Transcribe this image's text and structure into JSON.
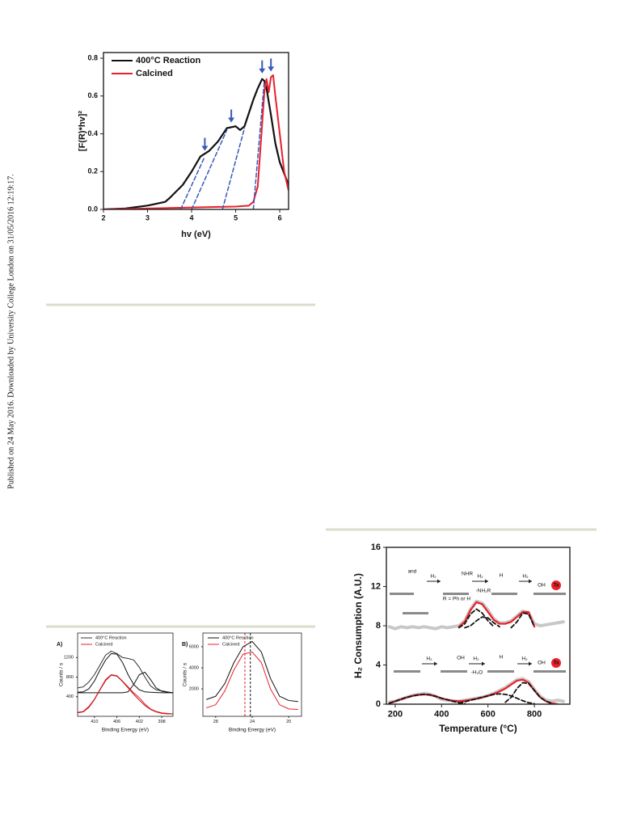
{
  "sidebar": "Published on 24 May 2016. Downloaded by University College London on 31/05/2016 12:19:17.",
  "chart_data": [
    {
      "type": "line",
      "xlabel": "hv (eV)",
      "ylabel": "[F(R)*hv]²",
      "xlim": [
        2,
        6.2
      ],
      "ylim": [
        0,
        0.83
      ],
      "xticks": [
        2,
        3,
        4,
        5,
        6
      ],
      "yticks": [
        {
          "value": 0,
          "label": "0.0"
        },
        0.2,
        0.4,
        0.6,
        0.8
      ],
      "legend": "upper left",
      "series": [
        {
          "name": "400°C Reaction",
          "color": "#111111",
          "linewidth": 2.2,
          "x": [
            2,
            2.5,
            3,
            3.4,
            3.5,
            3.8,
            4.0,
            4.2,
            4.4,
            4.6,
            4.8,
            5.0,
            5.1,
            5.2,
            5.4,
            5.5,
            5.6,
            5.65,
            5.7,
            5.8,
            5.9,
            6.0,
            6.1,
            6.2
          ],
          "values": [
            0,
            0.005,
            0.02,
            0.04,
            0.06,
            0.13,
            0.2,
            0.28,
            0.31,
            0.36,
            0.43,
            0.44,
            0.42,
            0.44,
            0.58,
            0.64,
            0.69,
            0.68,
            0.64,
            0.5,
            0.35,
            0.25,
            0.19,
            0.13
          ]
        },
        {
          "name": "Calcined",
          "color": "#e8202a",
          "linewidth": 2,
          "x": [
            2,
            3,
            4,
            5,
            5.3,
            5.4,
            5.5,
            5.6,
            5.65,
            5.7,
            5.75,
            5.8,
            5.85,
            5.9,
            6.0,
            6.1,
            6.2
          ],
          "values": [
            0,
            0.005,
            0.01,
            0.015,
            0.02,
            0.04,
            0.12,
            0.45,
            0.62,
            0.69,
            0.62,
            0.7,
            0.71,
            0.6,
            0.4,
            0.2,
            0.1
          ]
        },
        {
          "color": "#3a58b8",
          "style": "dashed",
          "linewidth": 1.5,
          "x": [
            3.75,
            4.3
          ],
          "values": [
            0,
            0.28
          ]
        },
        {
          "color": "#3a58b8",
          "style": "dashed",
          "linewidth": 1.5,
          "x": [
            4.0,
            4.8
          ],
          "values": [
            0,
            0.42
          ]
        },
        {
          "color": "#3a58b8",
          "style": "dashed",
          "linewidth": 1.5,
          "x": [
            4.7,
            5.2
          ],
          "values": [
            0,
            0.43
          ]
        },
        {
          "color": "#3a58b8",
          "style": "dashed",
          "linewidth": 1.5,
          "x": [
            5.4,
            5.65
          ],
          "values": [
            0,
            0.68
          ]
        }
      ],
      "arrows": [
        {
          "x": 4.3,
          "y": 0.31
        },
        {
          "x": 4.9,
          "y": 0.46
        },
        {
          "x": 5.6,
          "y": 0.72
        },
        {
          "x": 5.8,
          "y": 0.73
        }
      ],
      "arrow_color": "#3a58b8"
    },
    {
      "type": "line",
      "panel_label": "A)",
      "xlabel": "Binding Energy (eV)",
      "ylabel": "Counts / s",
      "xlim": [
        413,
        396
      ],
      "ylim": [
        0,
        1700
      ],
      "xticks": [
        410,
        406,
        402,
        398
      ],
      "yticks": [
        400,
        800,
        1200
      ],
      "legend": "upper left",
      "x": [
        413,
        412,
        411,
        410,
        409,
        408,
        407,
        406,
        405,
        404,
        403,
        402,
        401,
        400,
        399,
        398,
        397,
        396
      ],
      "series": [
        {
          "name": "400°C Reaction",
          "color": "#333333",
          "linewidth": 1,
          "values": [
            580,
            600,
            700,
            850,
            1050,
            1250,
            1330,
            1280,
            1200,
            1180,
            1150,
            1000,
            800,
            620,
            540,
            520,
            500,
            480
          ]
        },
        {
          "color": "#111111",
          "linewidth": 1,
          "values": [
            490,
            500,
            560,
            720,
            950,
            1150,
            1280,
            1270,
            1100,
            850,
            650,
            540,
            500,
            490,
            485,
            480,
            480,
            480
          ]
        },
        {
          "color": "#111111",
          "linewidth": 1,
          "values": [
            480,
            480,
            480,
            480,
            480,
            480,
            480,
            480,
            480,
            500,
            650,
            850,
            900,
            750,
            580,
            510,
            490,
            480
          ]
        },
        {
          "name": "Calcined",
          "color": "#e8202a",
          "linewidth": 1,
          "values": [
            80,
            100,
            200,
            350,
            550,
            750,
            850,
            830,
            720,
            600,
            480,
            380,
            250,
            150,
            100,
            70,
            60,
            50
          ]
        },
        {
          "color": "#c01818",
          "linewidth": 1,
          "values": [
            70,
            90,
            180,
            340,
            540,
            730,
            840,
            820,
            710,
            580,
            450,
            330,
            220,
            140,
            90,
            60,
            50,
            50
          ]
        }
      ]
    },
    {
      "type": "line",
      "panel_label": "B)",
      "xlabel": "Binding Energy (eV)",
      "ylabel": "Counts / s",
      "xlim": [
        29.4,
        18.6
      ],
      "ylim": [
        -600,
        7300
      ],
      "xticks": [
        28,
        24,
        20
      ],
      "yticks": [
        2000,
        4000,
        6000
      ],
      "legend": "upper left",
      "x": [
        29,
        28,
        27,
        26,
        25,
        24,
        23,
        22,
        21,
        20,
        19
      ],
      "series": [
        {
          "name": "400°C Reaction",
          "color": "#111111",
          "linewidth": 1,
          "values": [
            1000,
            1300,
            2500,
            4500,
            6000,
            6500,
            5500,
            3000,
            1300,
            900,
            800
          ]
        },
        {
          "name": "Calcined",
          "color": "#e8202a",
          "linewidth": 1,
          "values": [
            200,
            500,
            1800,
            3800,
            5300,
            5500,
            4500,
            2000,
            500,
            100,
            50
          ]
        }
      ],
      "reference_lines": [
        {
          "x": 24.8,
          "color": "#e8202a"
        },
        {
          "x": 24.2,
          "color": "#111111"
        }
      ]
    },
    {
      "type": "line",
      "xlabel": "Temperature (°C)",
      "ylabel": "H₂ Consumption (A.U.)",
      "xlim": [
        162,
        953
      ],
      "ylim": [
        0,
        16
      ],
      "xticks": [
        200,
        400,
        600,
        800
      ],
      "yticks": [
        0,
        4,
        8,
        12,
        16
      ],
      "x": [
        175,
        200,
        225,
        250,
        275,
        300,
        325,
        350,
        375,
        400,
        425,
        450,
        475,
        500,
        525,
        550,
        575,
        600,
        625,
        650,
        675,
        700,
        725,
        750,
        775,
        800,
        825,
        850,
        875,
        900,
        925
      ],
      "series": [
        {
          "color": "#c8c8c8",
          "linewidth": 4,
          "values": [
            7.9,
            7.7,
            7.9,
            7.8,
            7.9,
            7.8,
            7.9,
            7.8,
            7.7,
            7.9,
            7.8,
            7.9,
            8.0,
            8.5,
            9.7,
            10.5,
            10.3,
            9.6,
            8.7,
            8.3,
            8.3,
            8.5,
            9.0,
            9.5,
            9.3,
            8.2,
            8.0,
            8.1,
            8.2,
            8.3,
            8.4
          ]
        },
        {
          "color": "#e8202a",
          "linewidth": 2.2,
          "values": [
            null,
            null,
            null,
            null,
            null,
            null,
            null,
            null,
            null,
            null,
            null,
            null,
            7.9,
            8.4,
            9.6,
            10.4,
            10.2,
            9.4,
            8.6,
            8.2,
            8.2,
            8.4,
            8.9,
            9.4,
            9.4,
            7.9,
            null,
            null,
            null,
            null,
            null
          ]
        },
        {
          "color": "#111111",
          "style": "dashed",
          "linewidth": 1.8,
          "values": [
            null,
            null,
            null,
            null,
            null,
            null,
            null,
            null,
            null,
            null,
            null,
            null,
            7.8,
            8.2,
            9.2,
            9.7,
            9.3,
            8.5,
            7.9,
            null,
            null,
            null,
            null,
            null,
            null,
            null,
            null,
            null,
            null,
            null,
            null
          ]
        },
        {
          "color": "#111111",
          "style": "dashed",
          "linewidth": 1.8,
          "values": [
            null,
            null,
            null,
            null,
            null,
            null,
            null,
            null,
            null,
            null,
            null,
            null,
            null,
            7.8,
            8.0,
            8.5,
            8.9,
            8.8,
            8.3,
            7.9,
            null,
            null,
            null,
            null,
            null,
            null,
            null,
            null,
            null,
            null,
            null
          ]
        },
        {
          "color": "#111111",
          "style": "dashed",
          "linewidth": 1.8,
          "values": [
            null,
            null,
            null,
            null,
            null,
            null,
            null,
            null,
            null,
            null,
            null,
            null,
            null,
            null,
            null,
            null,
            null,
            null,
            null,
            null,
            null,
            7.8,
            8.4,
            9.3,
            9.2,
            7.9,
            null,
            null,
            null,
            null,
            null
          ]
        },
        {
          "color": "#c8c8c8",
          "linewidth": 4,
          "values": [
            0.2,
            0.3,
            0.5,
            0.7,
            0.9,
            1.0,
            1.1,
            1.0,
            0.8,
            0.5,
            0.4,
            0.3,
            0.3,
            0.4,
            0.5,
            0.6,
            0.7,
            0.9,
            1.1,
            1.4,
            1.7,
            2.1,
            2.5,
            2.6,
            2.3,
            1.5,
            0.8,
            0.4,
            0.3,
            0.4,
            0.3
          ]
        },
        {
          "color": "#e8202a",
          "linewidth": 2.2,
          "values": [
            0.1,
            0.3,
            0.5,
            0.7,
            0.85,
            0.95,
            1.0,
            0.95,
            0.8,
            0.6,
            0.45,
            0.35,
            0.3,
            0.35,
            0.45,
            0.55,
            0.7,
            0.85,
            1.05,
            1.3,
            1.6,
            2.0,
            2.4,
            2.5,
            2.2,
            1.4,
            0.7,
            0.3,
            0.1,
            0.0,
            null
          ]
        },
        {
          "color": "#111111",
          "style": "dashed",
          "linewidth": 1.8,
          "values": [
            0.1,
            0.3,
            0.5,
            0.7,
            0.85,
            0.95,
            1.0,
            0.95,
            0.8,
            0.6,
            0.45,
            0.3,
            0.15,
            0.05,
            null,
            null,
            null,
            null,
            null,
            null,
            null,
            null,
            null,
            null,
            null,
            null,
            null,
            null,
            null,
            null,
            null
          ]
        },
        {
          "color": "#111111",
          "style": "dashed",
          "linewidth": 1.8,
          "values": [
            null,
            null,
            null,
            null,
            null,
            null,
            null,
            null,
            null,
            null,
            null,
            null,
            0.1,
            0.25,
            0.4,
            0.55,
            0.7,
            0.85,
            1.0,
            1.05,
            1.0,
            0.85,
            0.6,
            0.35,
            0.15,
            0.05,
            null,
            null,
            null,
            null,
            null
          ]
        },
        {
          "color": "#111111",
          "style": "dashed",
          "linewidth": 1.8,
          "values": [
            null,
            null,
            null,
            null,
            null,
            null,
            null,
            null,
            null,
            null,
            null,
            null,
            null,
            null,
            null,
            null,
            null,
            null,
            null,
            null,
            0.2,
            0.7,
            1.6,
            2.2,
            2.1,
            1.4,
            0.7,
            0.3,
            0.05,
            null,
            null
          ]
        }
      ],
      "annotations": [
        "and",
        "H₂",
        "NHR",
        "H₂",
        "-NH₂R",
        "R = Ph or H",
        "H",
        "H₂",
        "OH",
        "Ta",
        "H₂",
        "OH",
        "H₂",
        "-H₂O",
        "H",
        "H₂",
        "OH",
        "Ta"
      ]
    }
  ]
}
